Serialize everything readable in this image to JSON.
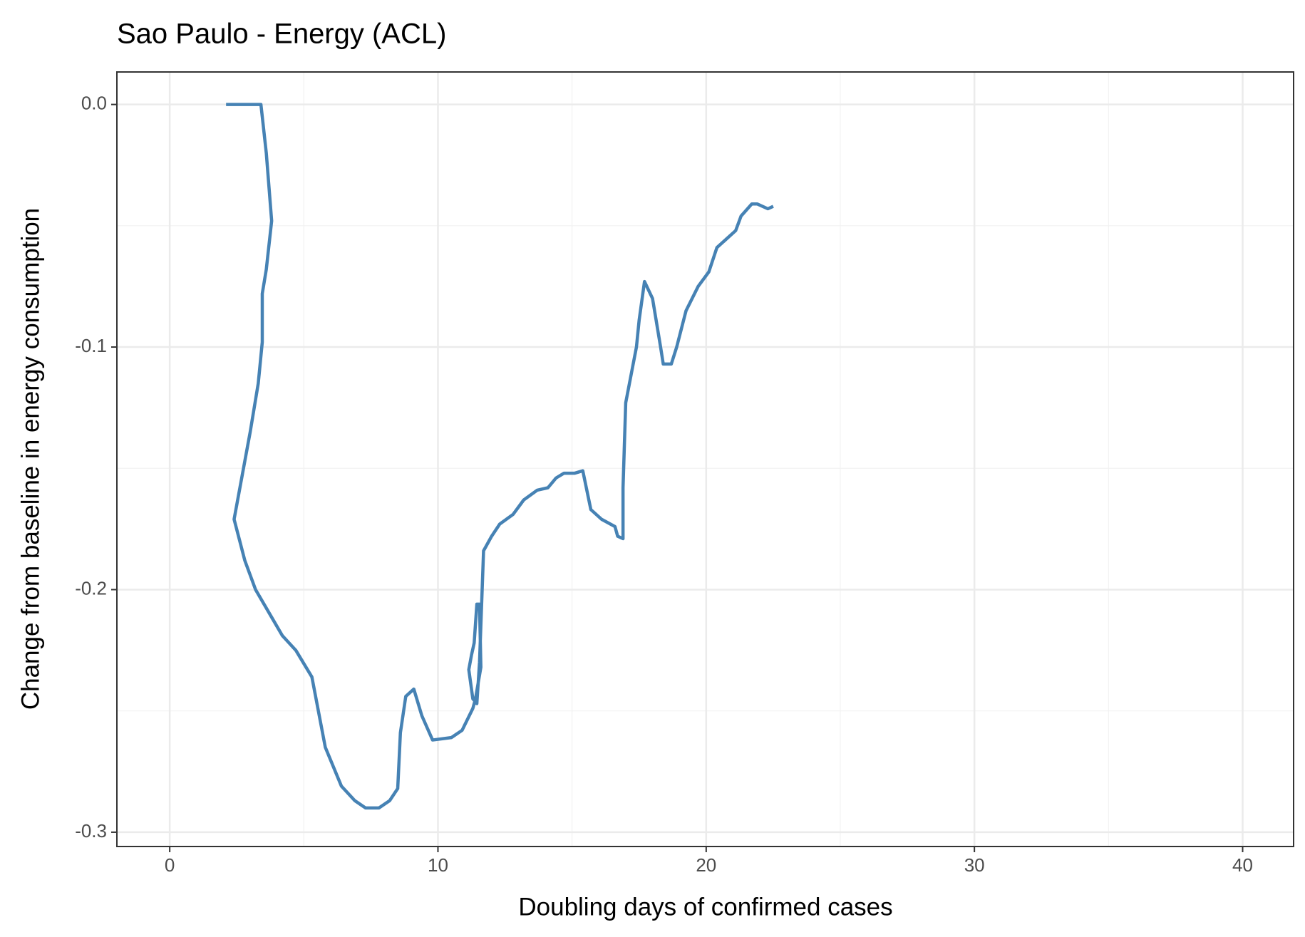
{
  "chart_data": {
    "type": "line",
    "title": "Sao Paulo - Energy (ACL)",
    "x_label": "Doubling days of confirmed cases",
    "y_label": "Change from baseline in energy consumption",
    "x": [
      2.1,
      3.4,
      3.6,
      3.8,
      3.6,
      3.45,
      3.45,
      3.3,
      3.0,
      2.4,
      2.8,
      3.2,
      4.2,
      4.7,
      5.3,
      5.8,
      6.4,
      6.9,
      7.3,
      7.8,
      8.2,
      8.5,
      8.6,
      8.8,
      9.1,
      9.4,
      9.8,
      10.5,
      10.9,
      11.3,
      11.4,
      11.6,
      11.55,
      11.45,
      11.35,
      11.25,
      11.15,
      11.3,
      11.45,
      11.55,
      11.7,
      12.0,
      12.3,
      12.8,
      13.2,
      13.7,
      14.1,
      14.4,
      14.7,
      15.1,
      15.4,
      15.7,
      16.1,
      16.6,
      16.7,
      16.9,
      16.9,
      17.0,
      17.0,
      17.4,
      17.5,
      17.7,
      18.0,
      18.3,
      18.4,
      18.5,
      18.7,
      18.9,
      19.25,
      19.7,
      20.1,
      20.4,
      21.1,
      21.3,
      21.7,
      21.9,
      22.3,
      22.5
    ],
    "series": [
      {
        "name": "Sao Paulo",
        "color": "#4682b4",
        "values": [
          0.0,
          0.0,
          -0.02,
          -0.048,
          -0.068,
          -0.078,
          -0.098,
          -0.115,
          -0.135,
          -0.171,
          -0.188,
          -0.2,
          -0.219,
          -0.225,
          -0.236,
          -0.265,
          -0.281,
          -0.287,
          -0.29,
          -0.29,
          -0.287,
          -0.282,
          -0.259,
          -0.244,
          -0.241,
          -0.252,
          -0.262,
          -0.261,
          -0.258,
          -0.249,
          -0.245,
          -0.232,
          -0.206,
          -0.206,
          -0.222,
          -0.227,
          -0.233,
          -0.245,
          -0.247,
          -0.23,
          -0.184,
          -0.178,
          -0.173,
          -0.169,
          -0.163,
          -0.159,
          -0.158,
          -0.154,
          -0.152,
          -0.152,
          -0.151,
          -0.167,
          -0.171,
          -0.174,
          -0.178,
          -0.179,
          -0.158,
          -0.123,
          -0.123,
          -0.1,
          -0.089,
          -0.073,
          -0.08,
          -0.1,
          -0.107,
          -0.107,
          -0.107,
          -0.1,
          -0.085,
          -0.075,
          -0.069,
          -0.059,
          -0.052,
          -0.046,
          -0.041,
          -0.041,
          -0.043,
          -0.042
        ]
      }
    ],
    "xlim": [
      -1.97,
      41.9
    ],
    "ylim": [
      -0.3059,
      0.0134
    ],
    "xticks": [
      0,
      10,
      20,
      30,
      40
    ],
    "yticks": [
      {
        "value": 0,
        "label": "0.0"
      },
      -0.1,
      -0.2,
      -0.3
    ],
    "grid": true
  }
}
